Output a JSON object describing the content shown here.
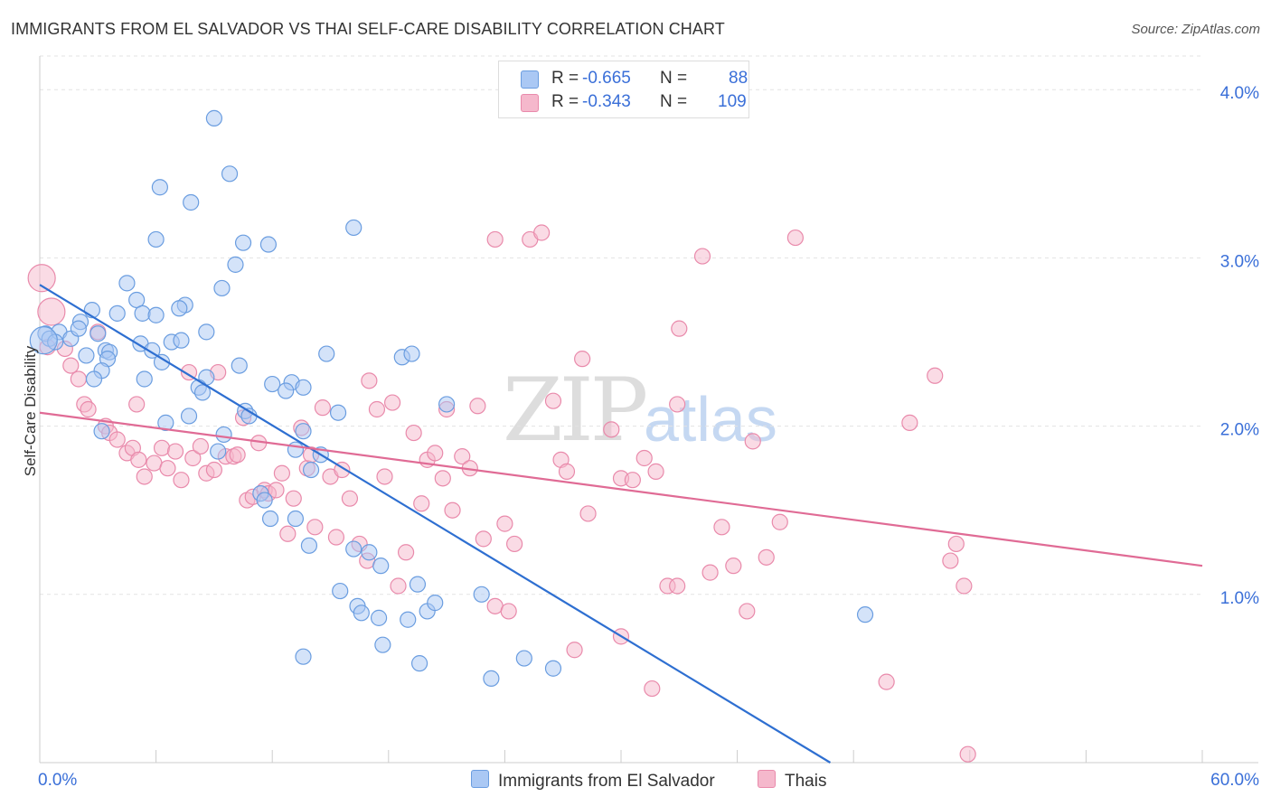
{
  "title": "IMMIGRANTS FROM EL SALVADOR VS THAI SELF-CARE DISABILITY CORRELATION CHART",
  "source": "Source: ZipAtlas.com",
  "watermark": {
    "part1": "ZIP",
    "part2": "atlas"
  },
  "legend": {
    "rows": [
      {
        "r_label": "R =",
        "r_value": "-0.665",
        "n_label": "N =",
        "n_value": "88",
        "color": "#aac8f4"
      },
      {
        "r_label": "R =",
        "r_value": "-0.343",
        "n_label": "N =",
        "n_value": "109",
        "color": "#f5b8cc"
      }
    ]
  },
  "colors": {
    "blue_fill": "#aac8f4",
    "blue_stroke": "#6a9de0",
    "blue_line": "#2e6fd1",
    "pink_fill": "#f5b8cc",
    "pink_stroke": "#e98aab",
    "pink_line": "#e06b95",
    "grid": "#e3e3e3",
    "tick_label": "#3a6fd8"
  },
  "chart_data": {
    "type": "scatter",
    "title": "IMMIGRANTS FROM EL SALVADOR VS THAI SELF-CARE DISABILITY CORRELATION CHART",
    "xlabel": "",
    "ylabel": "Self-Care Disability",
    "xlim": [
      0,
      60
    ],
    "ylim": [
      0,
      4.2
    ],
    "x_tick_labels": [
      "0.0%",
      "60.0%"
    ],
    "y_ticks": [
      1.0,
      2.0,
      3.0,
      4.0
    ],
    "y_tick_labels": [
      "1.0%",
      "2.0%",
      "3.0%",
      "4.0%"
    ],
    "grid": true,
    "legend_position": "top-center",
    "series": [
      {
        "name": "Immigrants from El Salvador",
        "color": "#aac8f4",
        "trend": {
          "x": [
            0,
            40.8
          ],
          "y": [
            2.84,
            0.0
          ]
        },
        "points": [
          [
            9.0,
            3.83
          ],
          [
            9.8,
            3.5
          ],
          [
            6.2,
            3.42
          ],
          [
            7.8,
            3.33
          ],
          [
            6.0,
            3.11
          ],
          [
            10.5,
            3.09
          ],
          [
            11.8,
            3.08
          ],
          [
            16.2,
            3.18
          ],
          [
            10.1,
            2.96
          ],
          [
            4.5,
            2.85
          ],
          [
            9.4,
            2.82
          ],
          [
            5.0,
            2.75
          ],
          [
            7.5,
            2.72
          ],
          [
            2.7,
            2.69
          ],
          [
            4.0,
            2.67
          ],
          [
            5.3,
            2.67
          ],
          [
            7.2,
            2.7
          ],
          [
            6.0,
            2.66
          ],
          [
            2.1,
            2.62
          ],
          [
            0.3,
            2.55
          ],
          [
            0.5,
            2.52
          ],
          [
            1.0,
            2.56
          ],
          [
            1.6,
            2.52
          ],
          [
            0.8,
            2.5
          ],
          [
            3.0,
            2.55
          ],
          [
            8.6,
            2.56
          ],
          [
            3.4,
            2.45
          ],
          [
            5.2,
            2.49
          ],
          [
            6.8,
            2.5
          ],
          [
            7.3,
            2.51
          ],
          [
            2.4,
            2.42
          ],
          [
            3.6,
            2.44
          ],
          [
            3.5,
            2.4
          ],
          [
            5.8,
            2.45
          ],
          [
            6.3,
            2.38
          ],
          [
            14.8,
            2.43
          ],
          [
            18.7,
            2.41
          ],
          [
            19.2,
            2.43
          ],
          [
            10.3,
            2.36
          ],
          [
            3.2,
            2.33
          ],
          [
            2.8,
            2.28
          ],
          [
            5.4,
            2.28
          ],
          [
            8.6,
            2.29
          ],
          [
            8.2,
            2.23
          ],
          [
            12.0,
            2.25
          ],
          [
            13.0,
            2.26
          ],
          [
            12.7,
            2.21
          ],
          [
            13.6,
            2.23
          ],
          [
            8.4,
            2.2
          ],
          [
            21.0,
            2.13
          ],
          [
            10.6,
            2.09
          ],
          [
            10.8,
            2.06
          ],
          [
            15.4,
            2.08
          ],
          [
            7.7,
            2.06
          ],
          [
            6.5,
            2.02
          ],
          [
            3.2,
            1.97
          ],
          [
            9.5,
            1.95
          ],
          [
            13.6,
            1.97
          ],
          [
            9.2,
            1.85
          ],
          [
            13.2,
            1.86
          ],
          [
            14.5,
            1.83
          ],
          [
            14.0,
            1.74
          ],
          [
            11.4,
            1.6
          ],
          [
            11.6,
            1.56
          ],
          [
            11.9,
            1.45
          ],
          [
            13.2,
            1.45
          ],
          [
            13.9,
            1.29
          ],
          [
            16.2,
            1.27
          ],
          [
            17.0,
            1.25
          ],
          [
            17.6,
            1.17
          ],
          [
            19.5,
            1.06
          ],
          [
            22.8,
            1.0
          ],
          [
            15.5,
            1.02
          ],
          [
            16.4,
            0.93
          ],
          [
            16.6,
            0.89
          ],
          [
            17.5,
            0.86
          ],
          [
            19.0,
            0.85
          ],
          [
            20.0,
            0.9
          ],
          [
            20.4,
            0.95
          ],
          [
            25.0,
            0.62
          ],
          [
            17.7,
            0.7
          ],
          [
            19.6,
            0.59
          ],
          [
            13.6,
            0.63
          ],
          [
            23.3,
            0.5
          ],
          [
            26.5,
            0.56
          ],
          [
            42.6,
            0.88
          ],
          [
            0.2,
            2.51
          ],
          [
            2.0,
            2.58
          ]
        ]
      },
      {
        "name": "Thais",
        "color": "#f5b8cc",
        "trend": {
          "x": [
            0,
            60
          ],
          "y": [
            2.08,
            1.17
          ]
        },
        "points": [
          [
            0.1,
            2.88
          ],
          [
            0.6,
            2.68
          ],
          [
            1.3,
            2.46
          ],
          [
            1.6,
            2.36
          ],
          [
            2.0,
            2.28
          ],
          [
            2.3,
            2.13
          ],
          [
            2.5,
            2.1
          ],
          [
            3.0,
            2.56
          ],
          [
            3.4,
            2.0
          ],
          [
            3.6,
            1.96
          ],
          [
            4.0,
            1.92
          ],
          [
            4.5,
            1.84
          ],
          [
            4.8,
            1.87
          ],
          [
            5.0,
            2.13
          ],
          [
            5.1,
            1.8
          ],
          [
            5.4,
            1.7
          ],
          [
            5.9,
            1.78
          ],
          [
            6.3,
            1.87
          ],
          [
            6.6,
            1.75
          ],
          [
            7.0,
            1.85
          ],
          [
            7.3,
            1.68
          ],
          [
            7.7,
            2.32
          ],
          [
            7.9,
            1.81
          ],
          [
            8.3,
            1.88
          ],
          [
            8.6,
            1.72
          ],
          [
            9.0,
            1.74
          ],
          [
            9.2,
            2.32
          ],
          [
            9.6,
            1.82
          ],
          [
            10.0,
            1.82
          ],
          [
            10.2,
            1.83
          ],
          [
            10.5,
            2.05
          ],
          [
            10.7,
            1.56
          ],
          [
            11.0,
            1.58
          ],
          [
            11.3,
            1.9
          ],
          [
            11.6,
            1.62
          ],
          [
            11.8,
            1.6
          ],
          [
            12.2,
            1.62
          ],
          [
            12.5,
            1.72
          ],
          [
            12.8,
            1.36
          ],
          [
            13.1,
            1.57
          ],
          [
            13.5,
            1.99
          ],
          [
            13.8,
            1.75
          ],
          [
            14.0,
            1.83
          ],
          [
            14.2,
            1.4
          ],
          [
            14.6,
            2.11
          ],
          [
            15.0,
            1.7
          ],
          [
            15.3,
            1.34
          ],
          [
            15.6,
            1.74
          ],
          [
            16.0,
            1.57
          ],
          [
            16.5,
            1.3
          ],
          [
            16.9,
            1.2
          ],
          [
            17.0,
            2.27
          ],
          [
            17.4,
            2.1
          ],
          [
            17.8,
            1.7
          ],
          [
            18.2,
            2.14
          ],
          [
            18.5,
            1.05
          ],
          [
            18.9,
            1.25
          ],
          [
            19.3,
            1.96
          ],
          [
            19.7,
            1.54
          ],
          [
            20.0,
            1.8
          ],
          [
            20.4,
            1.84
          ],
          [
            20.8,
            1.69
          ],
          [
            21.0,
            2.1
          ],
          [
            21.3,
            1.5
          ],
          [
            21.8,
            1.82
          ],
          [
            22.2,
            1.75
          ],
          [
            22.6,
            2.12
          ],
          [
            22.9,
            1.33
          ],
          [
            23.5,
            3.11
          ],
          [
            24.0,
            1.42
          ],
          [
            24.5,
            1.3
          ],
          [
            25.3,
            3.11
          ],
          [
            25.9,
            3.15
          ],
          [
            26.5,
            2.15
          ],
          [
            26.9,
            1.8
          ],
          [
            27.2,
            1.73
          ],
          [
            27.6,
            0.67
          ],
          [
            28.0,
            2.4
          ],
          [
            28.3,
            1.48
          ],
          [
            29.5,
            1.98
          ],
          [
            30.0,
            1.69
          ],
          [
            30.6,
            1.68
          ],
          [
            31.2,
            1.81
          ],
          [
            31.8,
            1.73
          ],
          [
            32.4,
            1.05
          ],
          [
            32.9,
            2.13
          ],
          [
            33.0,
            2.58
          ],
          [
            34.2,
            3.01
          ],
          [
            34.6,
            1.13
          ],
          [
            35.2,
            1.4
          ],
          [
            35.8,
            1.17
          ],
          [
            36.5,
            0.9
          ],
          [
            36.8,
            1.91
          ],
          [
            37.5,
            1.22
          ],
          [
            38.2,
            1.43
          ],
          [
            39.0,
            3.12
          ],
          [
            43.7,
            0.48
          ],
          [
            44.9,
            2.02
          ],
          [
            46.2,
            2.3
          ],
          [
            47.0,
            1.2
          ],
          [
            47.3,
            1.3
          ],
          [
            47.7,
            1.05
          ],
          [
            47.9,
            0.05
          ],
          [
            23.5,
            0.93
          ],
          [
            24.2,
            0.9
          ],
          [
            31.6,
            0.44
          ],
          [
            32.9,
            1.05
          ],
          [
            0.4,
            2.47
          ],
          [
            30.0,
            0.75
          ]
        ]
      }
    ]
  },
  "bottom_legend": [
    {
      "label": "Immigrants from El Salvador",
      "color": "#aac8f4"
    },
    {
      "label": "Thais",
      "color": "#f5b8cc"
    }
  ]
}
